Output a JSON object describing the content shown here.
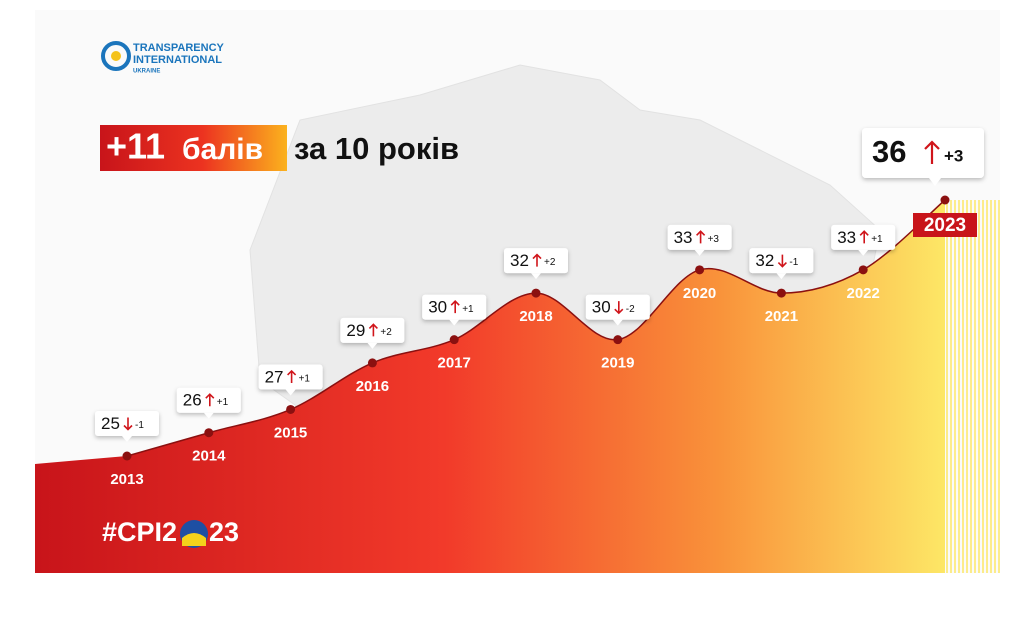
{
  "logo": {
    "line1": "TRANSPARENCY",
    "line2": "INTERNATIONAL",
    "line3": "UKRAINE"
  },
  "headline": {
    "number": "+11",
    "unit": "балів",
    "rest": "за 10 років"
  },
  "hashtag": {
    "start": "#CPI2",
    "end": "23"
  },
  "chart_data": {
    "type": "line",
    "categories": [
      "2013",
      "2014",
      "2015",
      "2016",
      "2017",
      "2018",
      "2019",
      "2020",
      "2021",
      "2022",
      "2023"
    ],
    "values": [
      25,
      26,
      27,
      29,
      30,
      32,
      30,
      33,
      32,
      33,
      36
    ],
    "changes": [
      -1,
      1,
      1,
      2,
      1,
      2,
      -2,
      3,
      -1,
      1,
      3
    ],
    "change_labels": [
      "-1",
      "+1",
      "+1",
      "+2",
      "+1",
      "+2",
      "-2",
      "+3",
      "-1",
      "+1",
      "+3"
    ],
    "color": "#8b1010"
  }
}
